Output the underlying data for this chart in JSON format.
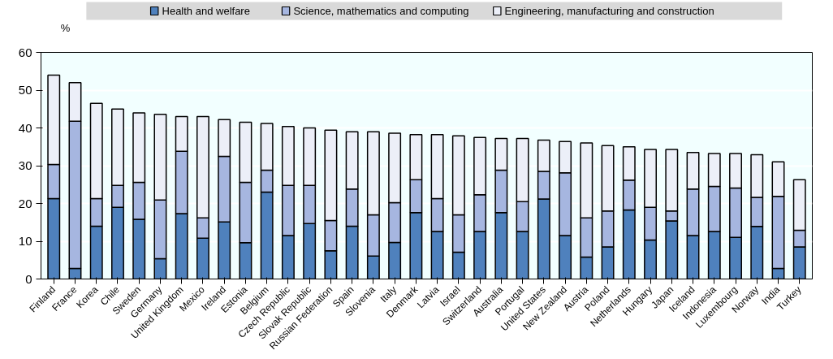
{
  "chart_data": {
    "type": "bar",
    "stacked": true,
    "ylabel": "%",
    "legend": "top",
    "grid": "y",
    "categories": [
      "Finland",
      "France",
      "Korea",
      "Chile",
      "Sweden",
      "Germany",
      "United Kingdom",
      "Mexico",
      "Ireland",
      "Estonia",
      "Belgium",
      "Czech Republic",
      "Slovak Republic",
      "Russian Federation",
      "Spain",
      "Slovenia",
      "Italy",
      "Denmark",
      "Latvia",
      "Israel",
      "Switzerland",
      "Australia",
      "Portugal",
      "United States",
      "New Zealand",
      "Austria",
      "Poland",
      "Netherlands",
      "Hungary",
      "Japan",
      "Iceland",
      "Indonesia",
      "Luxembourg",
      "Norway",
      "India",
      "Turkey"
    ],
    "ylim": [
      0,
      60
    ],
    "yticks": [
      0,
      10,
      20,
      30,
      40,
      50,
      60
    ],
    "series": [
      {
        "name": "Health and welfare",
        "color": "#4f81bd",
        "values": [
          21.3,
          2.8,
          14.0,
          19.0,
          15.8,
          5.4,
          17.3,
          10.8,
          15.1,
          9.6,
          23.0,
          11.5,
          14.7,
          7.5,
          14.0,
          6.1,
          9.7,
          17.6,
          12.6,
          7.1,
          12.6,
          17.6,
          12.6,
          21.2,
          11.5,
          5.8,
          8.5,
          18.3,
          10.3,
          15.4,
          11.5,
          12.6,
          11.0,
          13.9,
          2.8,
          8.5
        ]
      },
      {
        "name": "Science, mathematics and computing",
        "color": "#a6b6e0",
        "values": [
          9.0,
          39.0,
          7.3,
          5.8,
          9.8,
          15.5,
          16.5,
          5.4,
          17.4,
          16.0,
          5.8,
          13.3,
          10.1,
          8.0,
          9.8,
          10.9,
          10.5,
          8.7,
          8.7,
          9.9,
          9.7,
          11.2,
          7.9,
          7.3,
          16.6,
          10.4,
          9.5,
          7.9,
          8.7,
          2.6,
          12.3,
          11.9,
          13.1,
          7.7,
          19.1,
          4.4
        ]
      },
      {
        "name": "Engineering, manufacturing and construction",
        "color": "#eceff8",
        "values": [
          23.7,
          10.2,
          25.2,
          20.2,
          18.4,
          22.7,
          9.2,
          26.8,
          9.7,
          15.9,
          12.4,
          15.6,
          15.2,
          23.9,
          15.2,
          22.0,
          18.4,
          11.9,
          16.9,
          20.9,
          15.2,
          8.4,
          16.7,
          8.3,
          8.3,
          19.8,
          17.3,
          8.8,
          15.3,
          16.3,
          9.7,
          8.7,
          9.1,
          11.3,
          9.1,
          13.4
        ]
      }
    ]
  }
}
